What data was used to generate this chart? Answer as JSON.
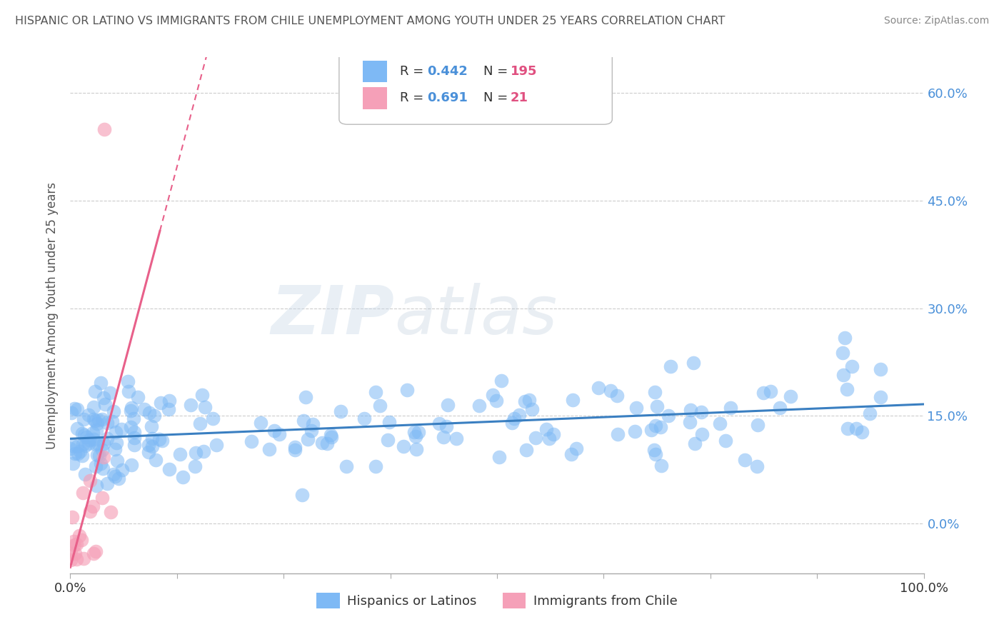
{
  "title": "HISPANIC OR LATINO VS IMMIGRANTS FROM CHILE UNEMPLOYMENT AMONG YOUTH UNDER 25 YEARS CORRELATION CHART",
  "source": "Source: ZipAtlas.com",
  "ylabel": "Unemployment Among Youth under 25 years",
  "watermark_zip": "ZIP",
  "watermark_atlas": "atlas",
  "xlim": [
    0.0,
    1.0
  ],
  "ylim": [
    -0.07,
    0.65
  ],
  "yticks": [
    0.0,
    0.15,
    0.3,
    0.45,
    0.6
  ],
  "ytick_labels": [
    "0.0%",
    "15.0%",
    "30.0%",
    "45.0%",
    "60.0%"
  ],
  "series": [
    {
      "name": "Hispanics or Latinos",
      "marker_color": "#7EB9F5",
      "line_color": "#3A7FC1",
      "R": 0.442,
      "N": 195
    },
    {
      "name": "Immigrants from Chile",
      "marker_color": "#F5A0B8",
      "line_color": "#E8608A",
      "R": 0.691,
      "N": 21
    }
  ],
  "background_color": "#FFFFFF",
  "grid_color": "#CCCCCC",
  "title_color": "#555555",
  "tick_color": "#4A90D9",
  "legend_R_color": "#4A90D9",
  "legend_N_color": "#E05080"
}
